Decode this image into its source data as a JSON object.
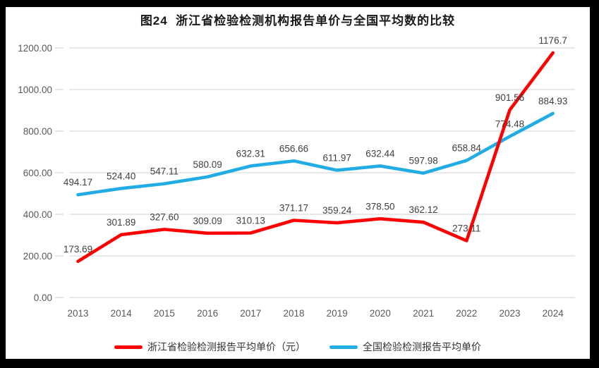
{
  "chart_data": {
    "type": "line",
    "title": "图24  浙江省检验检测机构报告单价与全国平均数的比较",
    "categories": [
      "2013",
      "2014",
      "2015",
      "2016",
      "2017",
      "2018",
      "2019",
      "2020",
      "2021",
      "2022",
      "2023",
      "2024"
    ],
    "series": [
      {
        "name": "浙江省检验检测报告平均单价（元）",
        "color": "#fe0000",
        "values": [
          173.69,
          301.89,
          327.6,
          309.09,
          310.13,
          371.17,
          359.24,
          378.5,
          362.12,
          273.11,
          901.56,
          1176.7
        ],
        "labels": [
          "173.69",
          "301.89",
          "327.60",
          "309.09",
          "310.13",
          "371.17",
          "359.24",
          "378.50",
          "362.12",
          "273.11",
          "901.56",
          "1176.7"
        ]
      },
      {
        "name": "全国检验检测报告平均单价",
        "color": "#21ace3",
        "values": [
          494.17,
          524.4,
          547.11,
          580.09,
          632.31,
          656.66,
          611.97,
          632.44,
          597.98,
          658.84,
          774.48,
          884.93
        ],
        "labels": [
          "494.17",
          "524.40",
          "547.11",
          "580.09",
          "632.31",
          "656.66",
          "611.97",
          "632.44",
          "597.98",
          "658.84",
          "774.48",
          "884.93"
        ]
      }
    ],
    "ylim": [
      0,
      1200
    ],
    "ytick_step": 200,
    "ytick_labels": [
      "0.00",
      "200.00",
      "400.00",
      "600.00",
      "800.00",
      "1000.00",
      "1200.00"
    ],
    "grid": true,
    "legend_position": "bottom"
  },
  "colors": {
    "grid": "#d9d9d9",
    "axis_text": "#595959",
    "label_text": "#404040",
    "title_text": "#1a1a1a",
    "surface": "#ffffff",
    "frame": "#000000"
  }
}
